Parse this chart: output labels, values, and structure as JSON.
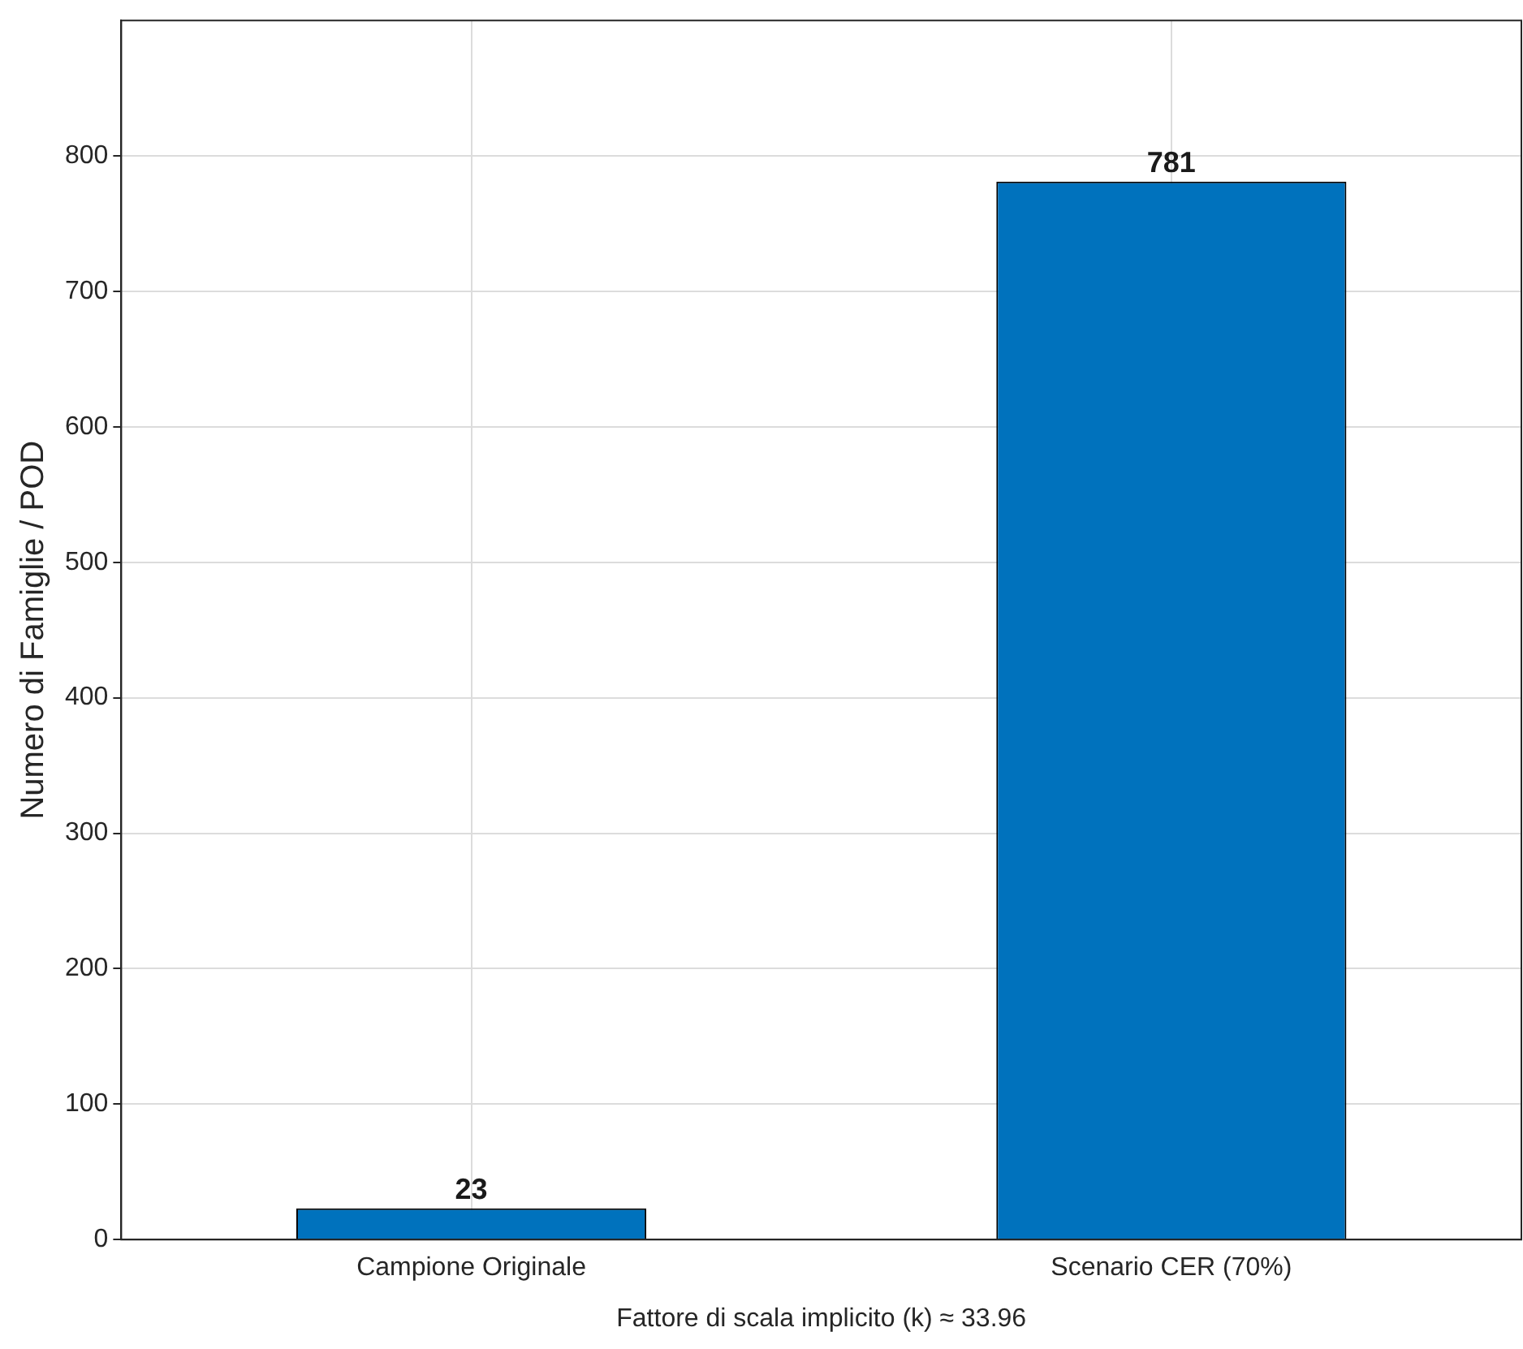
{
  "chart_data": {
    "type": "bar",
    "categories": [
      "Campione Originale",
      "Scenario CER (70%)"
    ],
    "values": [
      23,
      781
    ],
    "color": "#0072bd",
    "xlabel": "Fattore di scala implicito (k) ≈ 33.96",
    "ylabel": "Numero di Famiglie / POD",
    "ylim": [
      0,
      900
    ],
    "yticks": [
      0,
      100,
      200,
      300,
      400,
      500,
      600,
      700,
      800
    ],
    "grid": true,
    "data_labels": true
  }
}
